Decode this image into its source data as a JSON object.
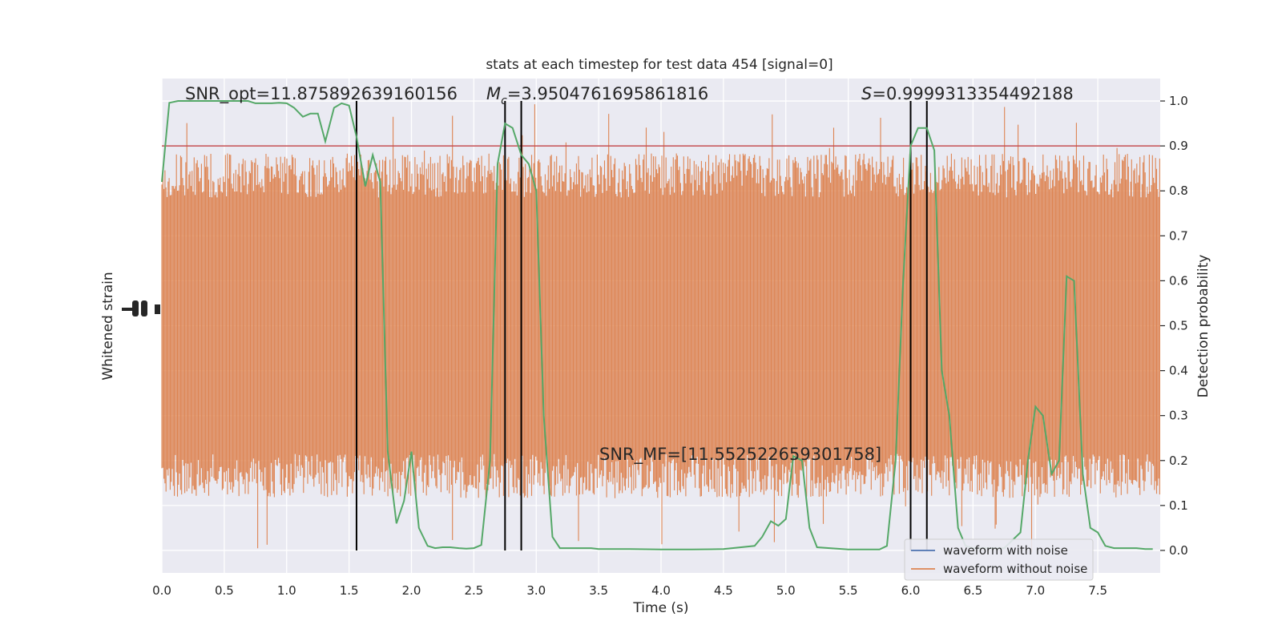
{
  "chart_data": {
    "type": "line",
    "title": "stats at each timestep for test data 454 [signal=0]",
    "xlabel": "Time (s)",
    "ylabel_left": "Whitened strain",
    "ylabel_right": "Detection probability",
    "xlim": [
      0.0,
      8.0
    ],
    "ylim_right": [
      -0.05,
      1.05
    ],
    "x_ticks": [
      "0.0",
      "0.5",
      "1.0",
      "1.5",
      "2.0",
      "2.5",
      "3.0",
      "3.5",
      "4.0",
      "4.5",
      "5.0",
      "5.5",
      "6.0",
      "6.5",
      "7.0",
      "7.5"
    ],
    "x_tick_values": [
      0,
      0.5,
      1,
      1.5,
      2,
      2.5,
      3,
      3.5,
      4,
      4.5,
      5,
      5.5,
      6,
      6.5,
      7,
      7.5
    ],
    "y_ticks_right": [
      "0.0",
      "0.1",
      "0.2",
      "0.3",
      "0.4",
      "0.5",
      "0.6",
      "0.7",
      "0.8",
      "0.9",
      "1.0"
    ],
    "y_tick_values_right": [
      0,
      0.1,
      0.2,
      0.3,
      0.4,
      0.5,
      0.6,
      0.7,
      0.8,
      0.9,
      1.0
    ],
    "grid": true,
    "threshold": 0.9,
    "vertical_lines": [
      1.56,
      2.75,
      2.88,
      6.0,
      6.13
    ],
    "annotations": {
      "snr_opt": "SNR_opt=11.875892639160156",
      "mc_symbol": "M",
      "mc_sub": "c",
      "mc_value": "=3.9504761695861816",
      "s_symbol": "S",
      "s_value": "=0.9999313354492188",
      "snr_mf": "SNR_MF=[11.552522659301758]"
    },
    "legend_position": "bottom-right",
    "series": [
      {
        "name": "waveform with noise",
        "color": "#4c72b0"
      },
      {
        "name": "waveform without noise",
        "color": "#dd8452"
      },
      {
        "color": "#55a868",
        "x": [
          0.0,
          0.06,
          0.13,
          0.19,
          0.25,
          0.31,
          0.38,
          0.44,
          0.5,
          0.56,
          0.63,
          0.69,
          0.75,
          0.81,
          0.88,
          0.94,
          1.0,
          1.06,
          1.13,
          1.19,
          1.25,
          1.31,
          1.38,
          1.44,
          1.5,
          1.56,
          1.63,
          1.69,
          1.75,
          1.81,
          1.88,
          1.94,
          2.0,
          2.06,
          2.13,
          2.19,
          2.25,
          2.31,
          2.38,
          2.44,
          2.5,
          2.56,
          2.63,
          2.69,
          2.75,
          2.81,
          2.88,
          2.94,
          3.0,
          3.06,
          3.13,
          3.19,
          3.25,
          3.31,
          3.38,
          3.44,
          3.5,
          3.75,
          4.0,
          4.25,
          4.5,
          4.75,
          4.81,
          4.88,
          4.94,
          5.0,
          5.06,
          5.13,
          5.19,
          5.25,
          5.5,
          5.75,
          5.81,
          5.88,
          5.94,
          6.0,
          6.06,
          6.13,
          6.19,
          6.25,
          6.31,
          6.38,
          6.44,
          6.5,
          6.75,
          6.88,
          6.94,
          7.0,
          7.06,
          7.13,
          7.19,
          7.25,
          7.31,
          7.38,
          7.44,
          7.5,
          7.56,
          7.63,
          7.69,
          7.75,
          7.81,
          7.88,
          7.94
        ],
        "y": [
          0.82,
          0.996,
          1.0,
          1.0,
          1.0,
          1.0,
          1.0,
          1.0,
          1.0,
          1.0,
          1.0,
          1.0,
          0.995,
          0.995,
          0.995,
          0.996,
          0.995,
          0.985,
          0.965,
          0.972,
          0.972,
          0.91,
          0.985,
          0.995,
          0.99,
          0.92,
          0.81,
          0.88,
          0.82,
          0.22,
          0.06,
          0.11,
          0.22,
          0.05,
          0.01,
          0.005,
          0.007,
          0.007,
          0.005,
          0.004,
          0.005,
          0.012,
          0.2,
          0.86,
          0.95,
          0.94,
          0.88,
          0.86,
          0.8,
          0.3,
          0.03,
          0.005,
          0.005,
          0.005,
          0.005,
          0.005,
          0.003,
          0.003,
          0.002,
          0.002,
          0.003,
          0.01,
          0.03,
          0.065,
          0.055,
          0.07,
          0.21,
          0.2,
          0.05,
          0.007,
          0.002,
          0.002,
          0.01,
          0.2,
          0.6,
          0.9,
          0.94,
          0.94,
          0.89,
          0.4,
          0.3,
          0.05,
          0.01,
          0.005,
          0.005,
          0.04,
          0.2,
          0.32,
          0.3,
          0.17,
          0.2,
          0.61,
          0.6,
          0.17,
          0.05,
          0.04,
          0.01,
          0.005,
          0.005,
          0.005,
          0.005,
          0.003,
          0.003
        ]
      }
    ]
  }
}
